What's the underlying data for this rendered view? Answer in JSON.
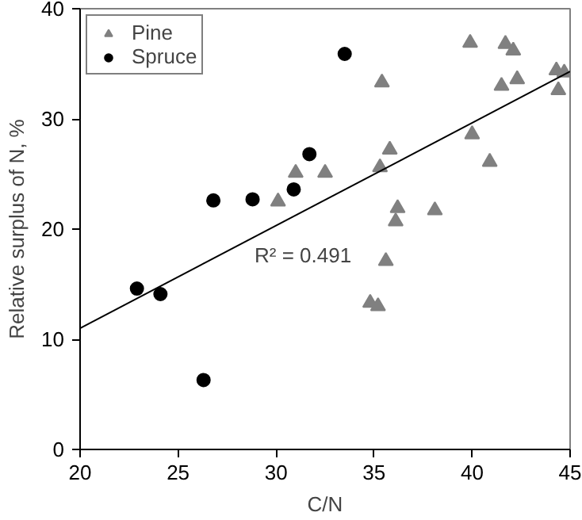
{
  "chart_data": {
    "type": "scatter",
    "xlabel": "C/N",
    "ylabel": "Relative surplus of N, %",
    "xlim": [
      20,
      45
    ],
    "ylim": [
      0,
      40
    ],
    "xticks": [
      20,
      25,
      30,
      35,
      40,
      45
    ],
    "yticks": [
      0,
      10,
      20,
      30,
      40
    ],
    "grid": false,
    "legend": "top left",
    "annotations": [
      "R² = 0.491"
    ],
    "series": [
      {
        "name": "Pine",
        "color": "#808080",
        "marker": "triangle",
        "x": [
          30.1,
          31.0,
          32.5,
          34.8,
          35.2,
          35.3,
          35.4,
          35.6,
          35.8,
          36.1,
          36.2,
          38.1,
          39.9,
          40.0,
          40.9,
          41.5,
          41.7,
          42.1,
          42.3,
          44.3,
          44.4,
          44.7
        ],
        "values": [
          22.5,
          25.1,
          25.1,
          13.3,
          13.0,
          25.6,
          33.3,
          17.1,
          27.2,
          20.7,
          21.9,
          21.7,
          36.9,
          28.6,
          26.1,
          33.0,
          36.8,
          36.2,
          33.6,
          34.4,
          32.6,
          34.2
        ]
      },
      {
        "name": "Spruce",
        "color": "#000000",
        "marker": "circle",
        "x": [
          22.9,
          24.1,
          26.3,
          26.8,
          28.8,
          30.9,
          31.7,
          33.5
        ],
        "values": [
          14.6,
          14.1,
          6.3,
          22.6,
          22.7,
          23.6,
          26.8,
          35.9
        ]
      },
      {
        "type": "line",
        "color": "#000000",
        "x": [
          20,
          45
        ],
        "values": [
          11.0,
          34.3
        ]
      }
    ]
  }
}
